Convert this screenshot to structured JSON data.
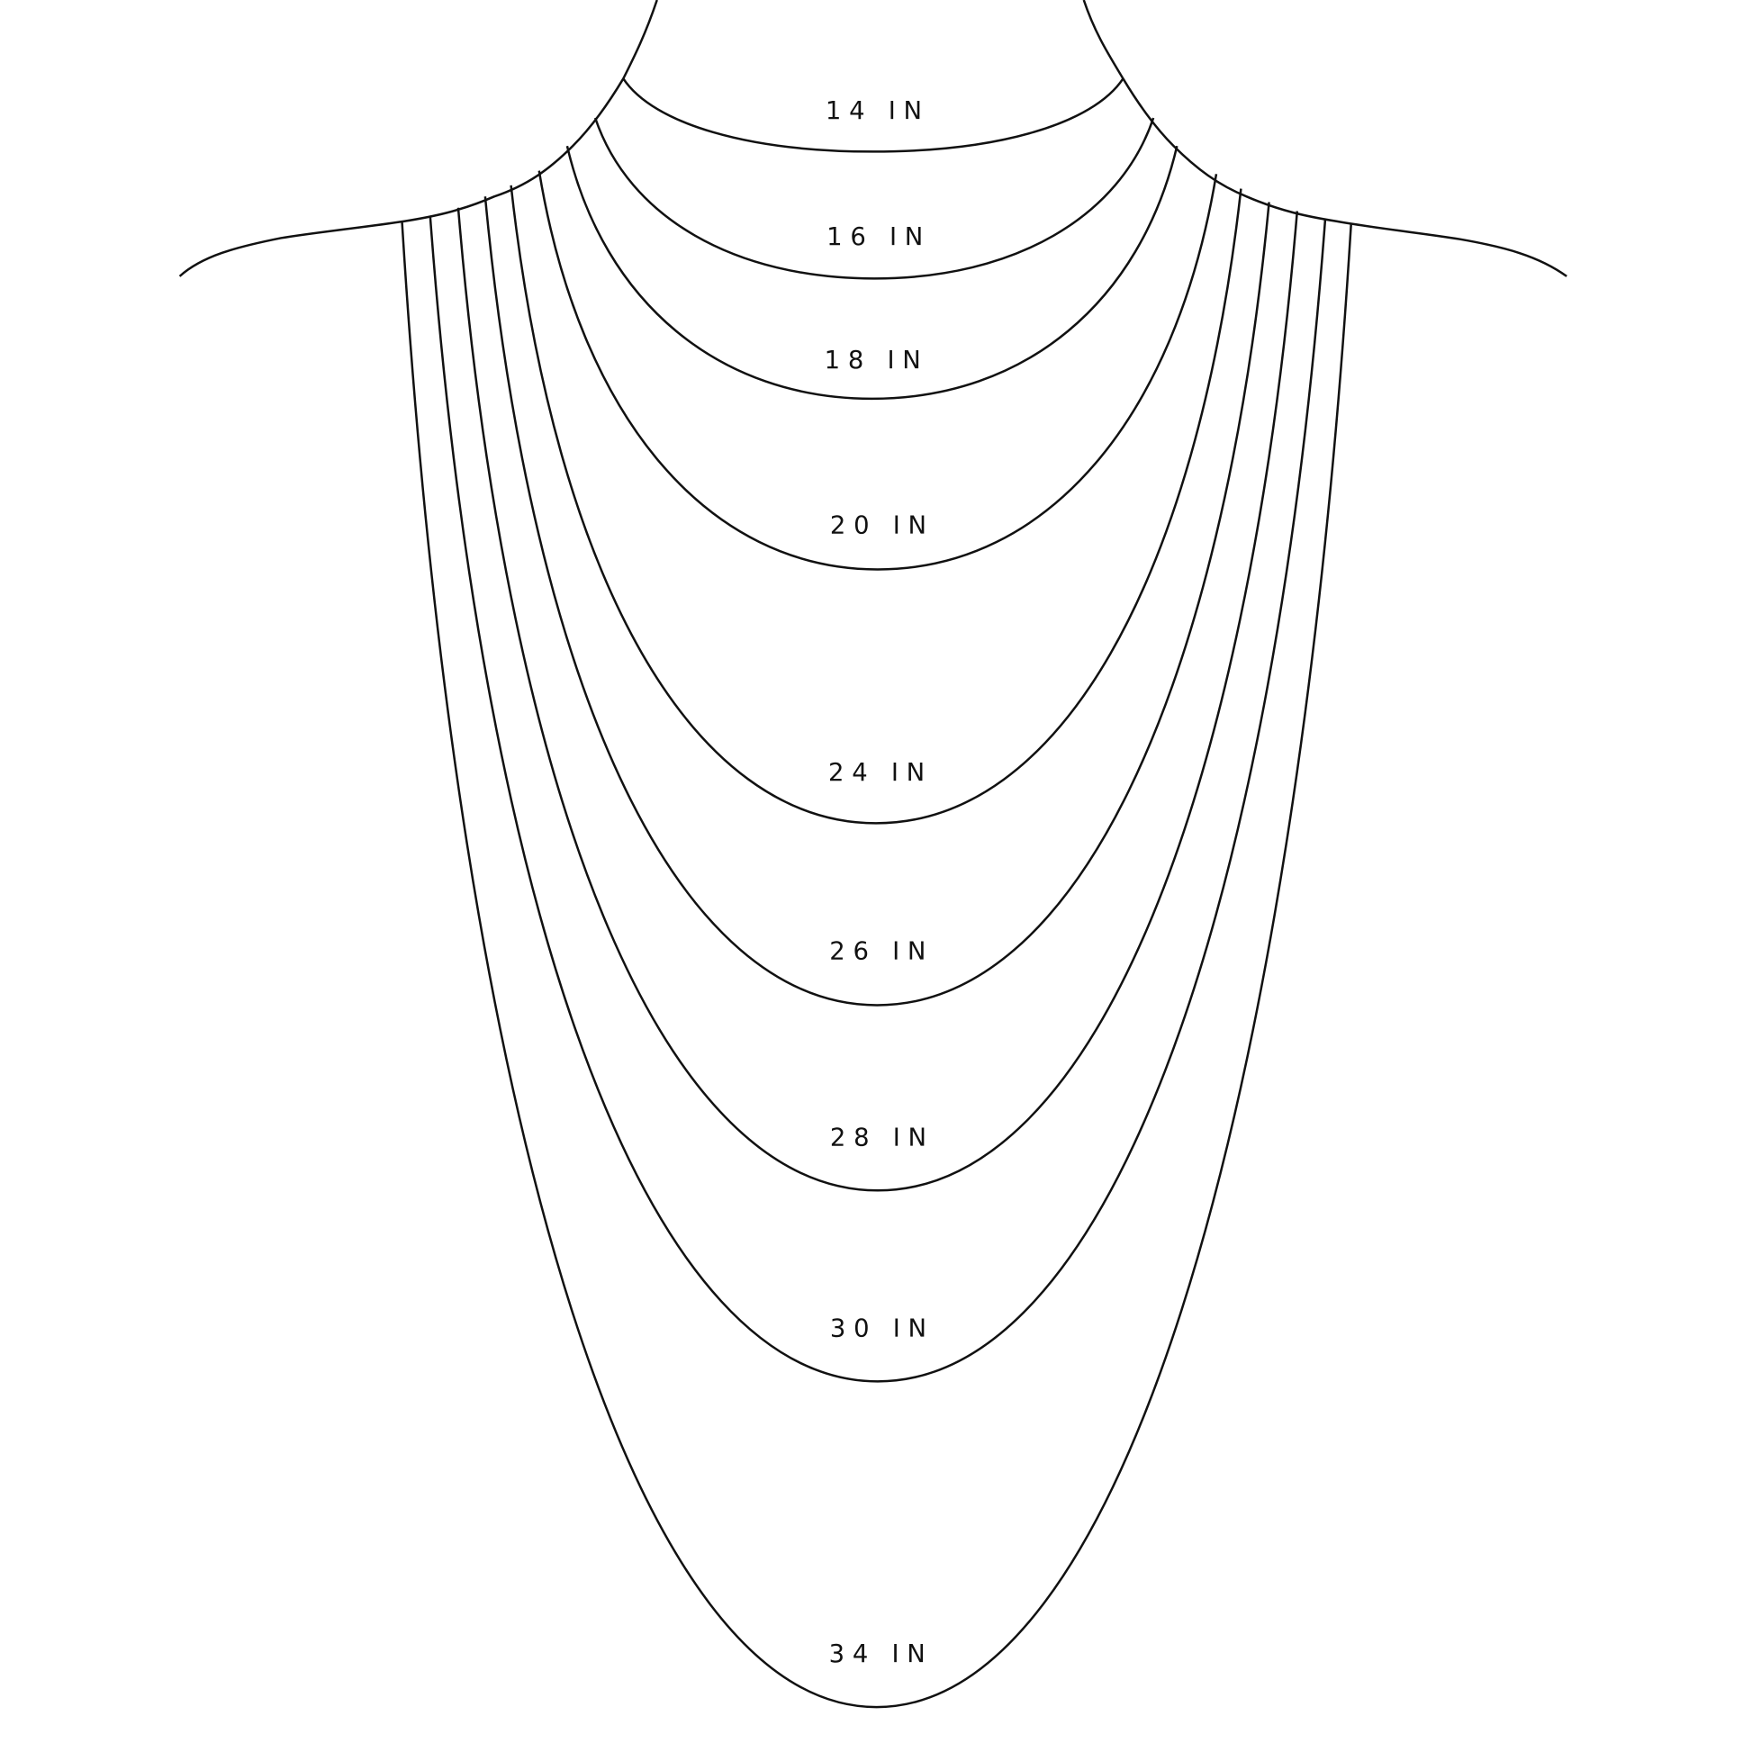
{
  "line_color": "#111111",
  "background": "#ffffff",
  "chains": [
    {
      "label": "14 IN",
      "length_in": 14
    },
    {
      "label": "16 IN",
      "length_in": 16
    },
    {
      "label": "18 IN",
      "length_in": 18
    },
    {
      "label": "20 IN",
      "length_in": 20
    },
    {
      "label": "24 IN",
      "length_in": 24
    },
    {
      "label": "26 IN",
      "length_in": 26
    },
    {
      "label": "28 IN",
      "length_in": 28
    },
    {
      "label": "30 IN",
      "length_in": 30
    },
    {
      "label": "34 IN",
      "length_in": 34
    }
  ]
}
